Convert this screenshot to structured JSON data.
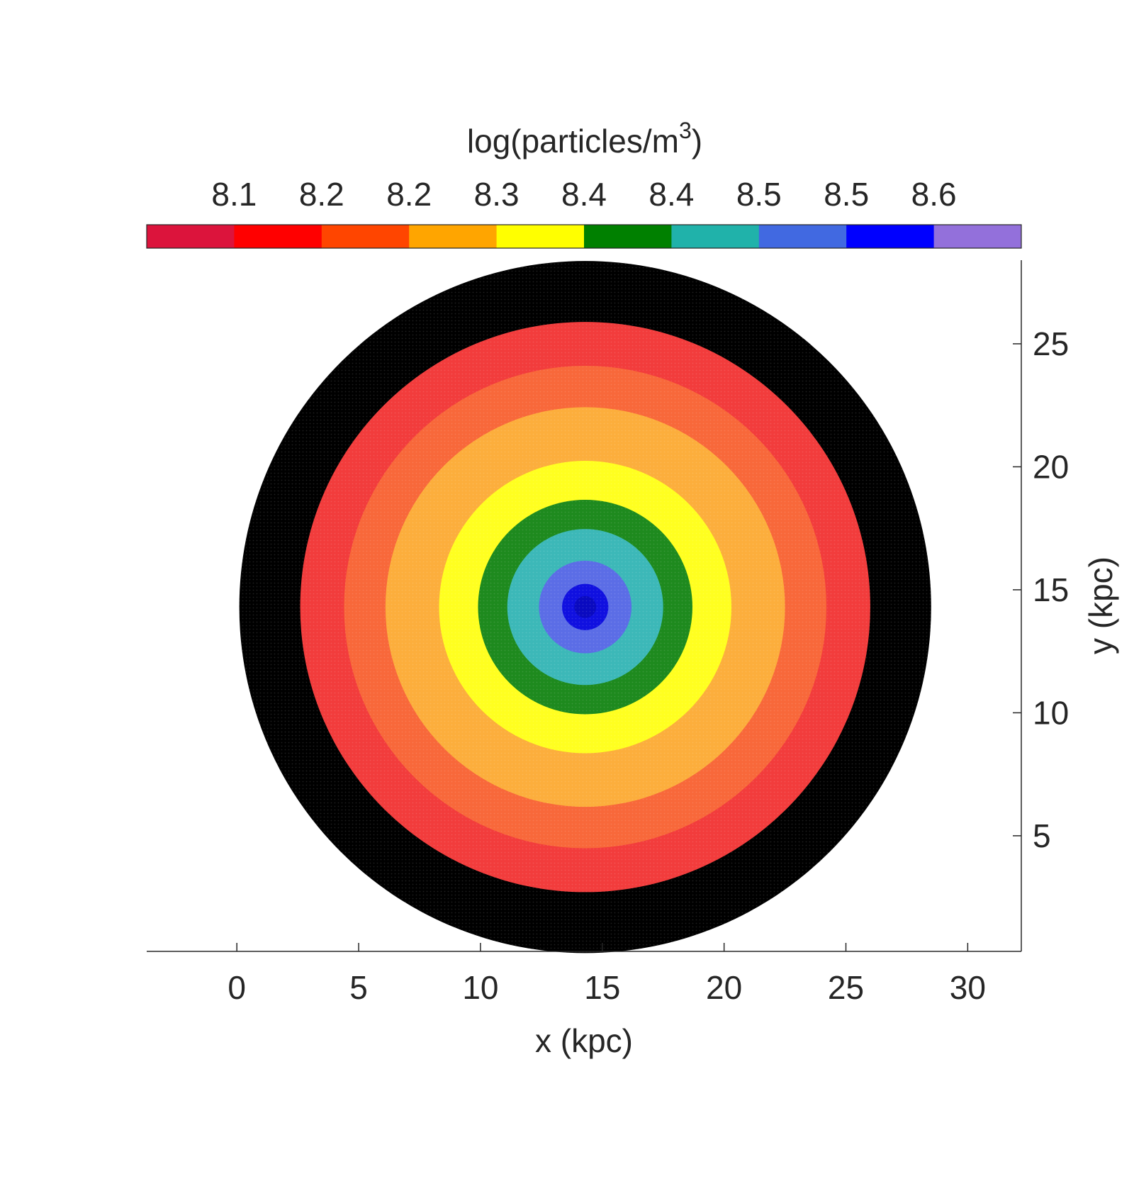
{
  "chart_data": {
    "type": "heatmap",
    "subtype": "concentric-ring-map",
    "xlabel": "x (kpc)",
    "ylabel": "y (kpc)",
    "xlim": [
      -3.7,
      32.2
    ],
    "ylim": [
      0.3,
      28.4
    ],
    "xticks": [
      0,
      5,
      10,
      15,
      20,
      25,
      30
    ],
    "yticks": [
      5,
      10,
      15,
      20,
      25
    ],
    "yaxis_location": "right",
    "grid": false,
    "center": [
      14.3,
      14.3
    ],
    "colorbar": {
      "location": "top",
      "title_base": "log(particles/m",
      "title_sup": "3",
      "title_end": ")",
      "tick_labels": [
        "8.1",
        "8.2",
        "8.2",
        "8.3",
        "8.4",
        "8.4",
        "8.5",
        "8.5",
        "8.6"
      ],
      "colors": [
        "#DC143C",
        "#FF0000",
        "#FF4500",
        "#FFA500",
        "#FFFF00",
        "#008000",
        "#20B2AA",
        "#4169E1",
        "#0000FF",
        "#9370DB"
      ]
    },
    "rings": [
      {
        "outer_radius_kpc": 14.2,
        "color": "#000000"
      },
      {
        "outer_radius_kpc": 11.7,
        "color": "#F23C3C"
      },
      {
        "outer_radius_kpc": 9.9,
        "color": "#F8683A"
      },
      {
        "outer_radius_kpc": 8.2,
        "color": "#FCAE3C"
      },
      {
        "outer_radius_kpc": 6.0,
        "color": "#FFFF20"
      },
      {
        "outer_radius_kpc": 4.4,
        "color": "#1E8A1E"
      },
      {
        "outer_radius_kpc": 3.2,
        "color": "#3CB8B8"
      },
      {
        "outer_radius_kpc": 1.9,
        "color": "#5B6DE6"
      },
      {
        "outer_radius_kpc": 0.95,
        "color": "#1010E0"
      },
      {
        "outer_radius_kpc": 0.45,
        "color": "#0A0AC0"
      }
    ]
  }
}
